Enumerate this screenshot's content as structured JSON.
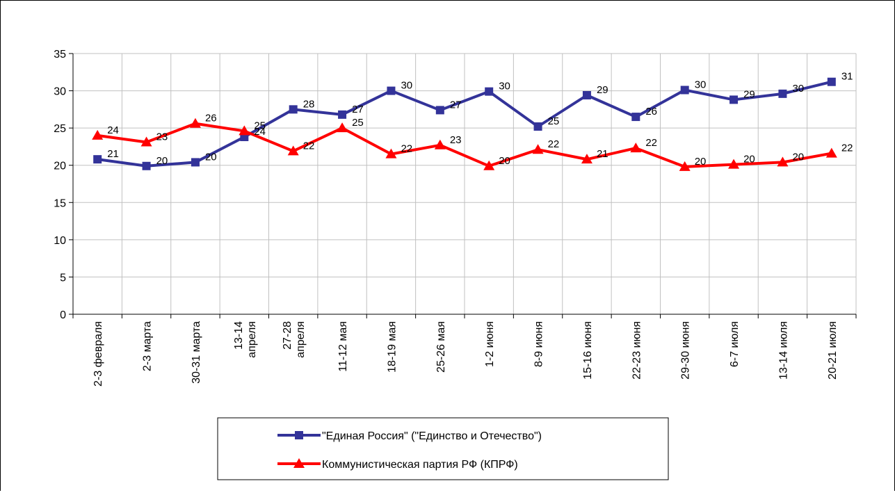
{
  "chart_data": {
    "type": "line",
    "title": "",
    "xlabel": "",
    "ylabel": "",
    "ylim": [
      0,
      35
    ],
    "yticks": [
      0,
      5,
      10,
      15,
      20,
      25,
      30,
      35
    ],
    "grid": true,
    "legend_position": "bottom",
    "categories": [
      [
        "2-3 февраля"
      ],
      [
        "2-3 марта"
      ],
      [
        "30-31 марта"
      ],
      [
        "13-14",
        "апреля"
      ],
      [
        "27-28",
        "апреля"
      ],
      [
        "11-12 мая"
      ],
      [
        "18-19 мая"
      ],
      [
        "25-26 мая"
      ],
      [
        "1-2 июня"
      ],
      [
        "8-9 июня"
      ],
      [
        "15-16 июня"
      ],
      [
        "22-23 июня"
      ],
      [
        "29-30 июня"
      ],
      [
        "6-7 июля"
      ],
      [
        "13-14 июля"
      ],
      [
        "20-21 июля"
      ]
    ],
    "series": [
      {
        "name": "\"Единая Россия\" (\"Единство и Отечество\")",
        "color": "#333399",
        "marker": "square",
        "values": [
          20.8,
          19.9,
          20.4,
          23.8,
          27.5,
          26.8,
          30.0,
          27.4,
          29.9,
          25.2,
          29.4,
          26.5,
          30.1,
          28.8,
          29.6,
          31.2
        ],
        "labels": [
          "21",
          "20",
          "20",
          "24",
          "28",
          "27",
          "30",
          "27",
          "30",
          "25",
          "29",
          "26",
          "30",
          "29",
          "30",
          "31"
        ]
      },
      {
        "name": "Коммунистическая партия РФ (КПРФ)",
        "color": "#ff0000",
        "marker": "triangle",
        "values": [
          24.0,
          23.1,
          25.6,
          24.6,
          21.9,
          25.0,
          21.5,
          22.7,
          19.9,
          22.1,
          20.8,
          22.3,
          19.8,
          20.1,
          20.4,
          21.6
        ],
        "labels": [
          "24",
          "23",
          "26",
          "25",
          "22",
          "25",
          "22",
          "23",
          "20",
          "22",
          "21",
          "22",
          "20",
          "20",
          "20",
          "22"
        ]
      }
    ]
  }
}
